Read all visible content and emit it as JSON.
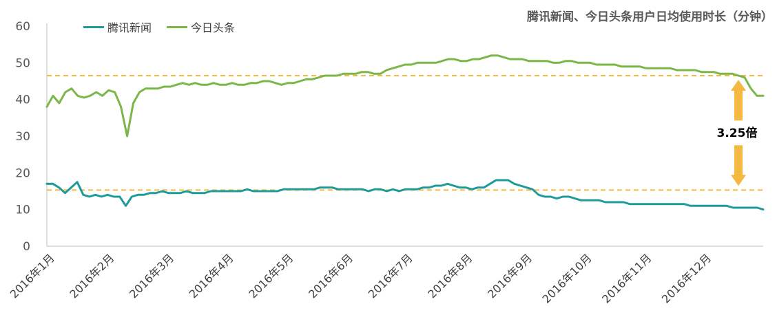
{
  "chart_data": {
    "type": "line",
    "title": "腾讯新闻、今日头条用户日均使用时长（分钟）",
    "y_ticks": [
      "0",
      "10",
      "20",
      "30",
      "40",
      "50",
      "60"
    ],
    "ylim": [
      0,
      60
    ],
    "x_ticks": [
      "2016年1月",
      "2016年2月",
      "2016年3月",
      "2016年4月",
      "2016年5月",
      "2016年6月",
      "2016年7月",
      "2016年8月",
      "2016年9月",
      "2016年10月",
      "2016年11月",
      "2016年12月"
    ],
    "x_unit": "month",
    "series": [
      {
        "name": "腾讯新闻",
        "color": "#1f9a9b",
        "values": [
          17,
          17,
          16,
          14.5,
          16,
          17.5,
          14,
          13.5,
          14,
          13.5,
          14,
          13.5,
          13.5,
          11,
          13.5,
          14,
          14,
          14.5,
          14.5,
          15,
          14.5,
          14.5,
          14.5,
          15,
          14.5,
          14.5,
          14.5,
          15,
          15,
          15,
          15,
          15,
          15,
          15.5,
          15,
          15,
          15,
          15,
          15,
          15.5,
          15.5,
          15.5,
          15.5,
          15.5,
          15.5,
          16,
          16,
          16,
          15.5,
          15.5,
          15.5,
          15.5,
          15.5,
          15,
          15.5,
          15.5,
          15,
          15.5,
          15,
          15.5,
          15.5,
          15.5,
          16,
          16,
          16.5,
          16.5,
          17,
          16.5,
          16,
          16,
          15.5,
          16,
          16,
          17,
          18,
          18,
          18,
          17,
          16.5,
          16,
          15.5,
          14,
          13.5,
          13.5,
          13,
          13.5,
          13.5,
          13,
          12.5,
          12.5,
          12.5,
          12.5,
          12,
          12,
          12,
          12,
          11.5,
          11.5,
          11.5,
          11.5,
          11.5,
          11.5,
          11.5,
          11.5,
          11.5,
          11.5,
          11,
          11,
          11,
          11,
          11,
          11,
          11,
          10.5,
          10.5,
          10.5,
          10.5,
          10.5,
          10
        ]
      },
      {
        "name": "今日头条",
        "color": "#7ab648",
        "values": [
          38,
          41,
          39,
          42,
          43,
          41,
          40.5,
          41,
          42,
          41,
          42.5,
          42,
          38,
          30,
          39,
          42,
          43,
          43,
          43,
          43.5,
          43.5,
          44,
          44.5,
          44,
          44.5,
          44,
          44,
          44.5,
          44,
          44,
          44.5,
          44,
          44,
          44.5,
          44.5,
          45,
          45,
          44.5,
          44,
          44.5,
          44.5,
          45,
          45.5,
          45.5,
          46,
          46.5,
          46.5,
          46.5,
          47,
          47,
          47,
          47.5,
          47.5,
          47,
          47,
          48,
          48.5,
          49,
          49.5,
          49.5,
          50,
          50,
          50,
          50,
          50.5,
          51,
          51,
          50.5,
          50.5,
          51,
          51,
          51.5,
          52,
          52,
          51.5,
          51,
          51,
          51,
          50.5,
          50.5,
          50.5,
          50.5,
          50,
          50,
          50.5,
          50.5,
          50,
          50,
          50,
          49.5,
          49.5,
          49.5,
          49.5,
          49,
          49,
          49,
          49,
          48.5,
          48.5,
          48.5,
          48.5,
          48.5,
          48,
          48,
          48,
          48,
          47.5,
          47.5,
          47.5,
          47,
          47,
          47,
          46.5,
          46,
          43,
          41,
          41
        ]
      }
    ],
    "reference_lines": [
      46.5,
      15.3
    ],
    "annotation": "3.25倍",
    "grid": false,
    "legend_position": "top-left"
  }
}
